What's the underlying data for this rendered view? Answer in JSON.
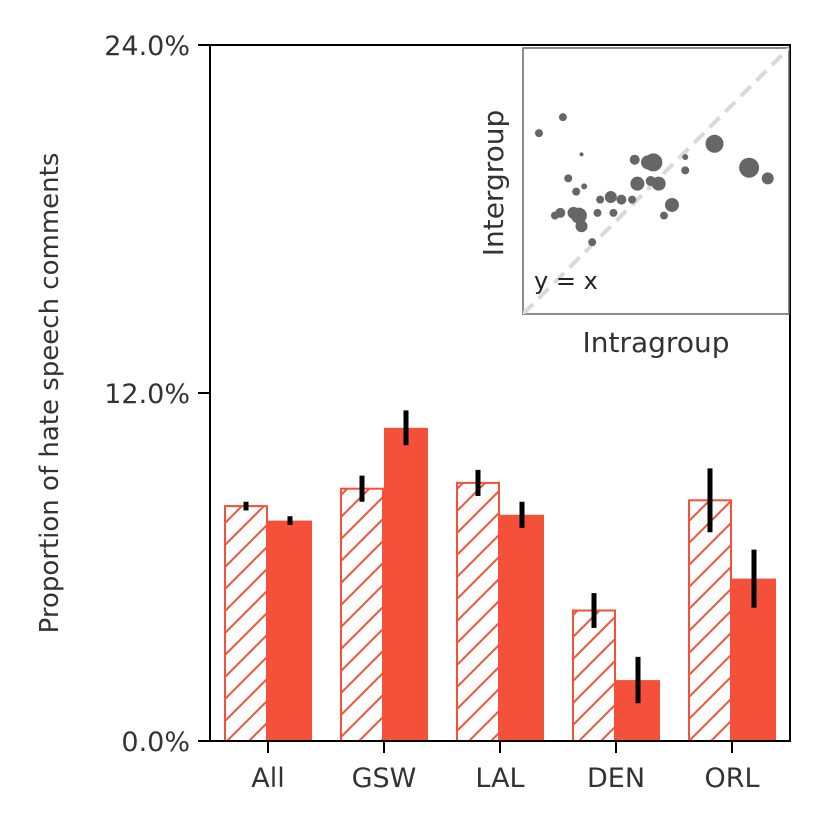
{
  "chart_data": [
    {
      "type": "bar",
      "title": "",
      "xlabel": "",
      "ylabel": "Proportion of hate speech comments",
      "ylim": [
        0,
        24
      ],
      "y_ticks": [
        "0.0%",
        "12.0%",
        "24.0%"
      ],
      "y_tick_values": [
        0,
        12,
        24
      ],
      "categories": [
        "All",
        "GSW",
        "LAL",
        "DEN",
        "ORL"
      ],
      "color": "#f4503a",
      "series": [
        {
          "name": "Intragroup",
          "style": "hatched",
          "values": [
            8.1,
            8.7,
            8.9,
            4.5,
            8.3
          ],
          "errors": [
            0.15,
            0.45,
            0.45,
            0.6,
            1.1
          ]
        },
        {
          "name": "Intergroup",
          "style": "filled",
          "values": [
            7.6,
            10.8,
            7.8,
            2.1,
            5.6
          ],
          "errors": [
            0.15,
            0.6,
            0.45,
            0.8,
            1.0
          ]
        }
      ]
    },
    {
      "type": "scatter",
      "inset": true,
      "xlabel": "Intragroup",
      "ylabel": "Intergroup",
      "reference_line_label": "y = x",
      "point_color": "#666666",
      "line_color": "#d9d9d9",
      "xlim": [
        0,
        1
      ],
      "ylim": [
        0,
        1
      ],
      "points": [
        {
          "x": 0.06,
          "y": 0.68,
          "s": 4
        },
        {
          "x": 0.15,
          "y": 0.74,
          "s": 4
        },
        {
          "x": 0.22,
          "y": 0.6,
          "s": 2
        },
        {
          "x": 0.17,
          "y": 0.51,
          "s": 4
        },
        {
          "x": 0.2,
          "y": 0.46,
          "s": 4
        },
        {
          "x": 0.23,
          "y": 0.48,
          "s": 3
        },
        {
          "x": 0.29,
          "y": 0.43,
          "s": 4
        },
        {
          "x": 0.33,
          "y": 0.44,
          "s": 6
        },
        {
          "x": 0.37,
          "y": 0.43,
          "s": 5
        },
        {
          "x": 0.41,
          "y": 0.43,
          "s": 4
        },
        {
          "x": 0.28,
          "y": 0.38,
          "s": 4
        },
        {
          "x": 0.34,
          "y": 0.38,
          "s": 4
        },
        {
          "x": 0.12,
          "y": 0.37,
          "s": 4
        },
        {
          "x": 0.14,
          "y": 0.38,
          "s": 5
        },
        {
          "x": 0.19,
          "y": 0.38,
          "s": 6
        },
        {
          "x": 0.21,
          "y": 0.37,
          "s": 8
        },
        {
          "x": 0.22,
          "y": 0.33,
          "s": 6
        },
        {
          "x": 0.26,
          "y": 0.27,
          "s": 4
        },
        {
          "x": 0.42,
          "y": 0.58,
          "s": 5
        },
        {
          "x": 0.47,
          "y": 0.57,
          "s": 7
        },
        {
          "x": 0.49,
          "y": 0.57,
          "s": 9
        },
        {
          "x": 0.43,
          "y": 0.49,
          "s": 7
        },
        {
          "x": 0.48,
          "y": 0.5,
          "s": 5
        },
        {
          "x": 0.51,
          "y": 0.49,
          "s": 7
        },
        {
          "x": 0.56,
          "y": 0.41,
          "s": 7
        },
        {
          "x": 0.53,
          "y": 0.37,
          "s": 4
        },
        {
          "x": 0.61,
          "y": 0.54,
          "s": 4
        },
        {
          "x": 0.61,
          "y": 0.59,
          "s": 3
        },
        {
          "x": 0.72,
          "y": 0.64,
          "s": 9
        },
        {
          "x": 0.85,
          "y": 0.55,
          "s": 10
        },
        {
          "x": 0.92,
          "y": 0.51,
          "s": 6
        }
      ]
    }
  ]
}
